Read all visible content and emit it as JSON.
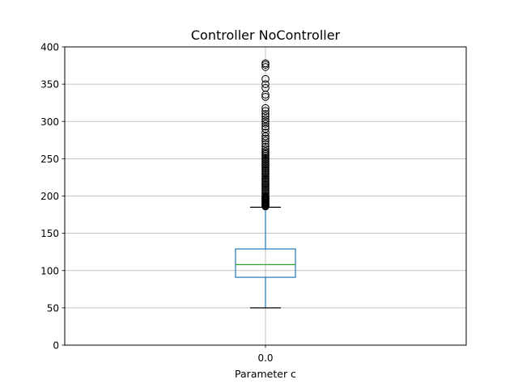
{
  "chart_data": {
    "type": "box",
    "title": "Controller NoController",
    "xlabel": "Parameter c",
    "ylabel": "",
    "categories": [
      "0.0"
    ],
    "ylim": [
      0,
      400
    ],
    "yticks": [
      0,
      50,
      100,
      150,
      200,
      250,
      300,
      350,
      400
    ],
    "grid": true,
    "boxes": [
      {
        "category": "0.0",
        "whisker_low": 50,
        "q1": 91,
        "median": 108,
        "q3": 129,
        "whisker_high": 185,
        "outliers": [
          186,
          187,
          188,
          189,
          190,
          191,
          192,
          193,
          194,
          195,
          196,
          197,
          198,
          199,
          200,
          202,
          204,
          206,
          208,
          210,
          212,
          214,
          216,
          218,
          220,
          222,
          224,
          226,
          228,
          230,
          232,
          234,
          236,
          238,
          240,
          242,
          244,
          246,
          248,
          250,
          252,
          254,
          256,
          258,
          260,
          263,
          266,
          270,
          274,
          277,
          280,
          285,
          290,
          293,
          297,
          300,
          303,
          307,
          310,
          314,
          318,
          333,
          336,
          345,
          350,
          357,
          373,
          376,
          378
        ]
      }
    ],
    "colors": {
      "box": "#1f77b4",
      "median": "#2ca02c",
      "whisker": "#1f77b4",
      "cap": "#000000",
      "grid": "#b0b0b0",
      "outlier": "#000000"
    }
  }
}
